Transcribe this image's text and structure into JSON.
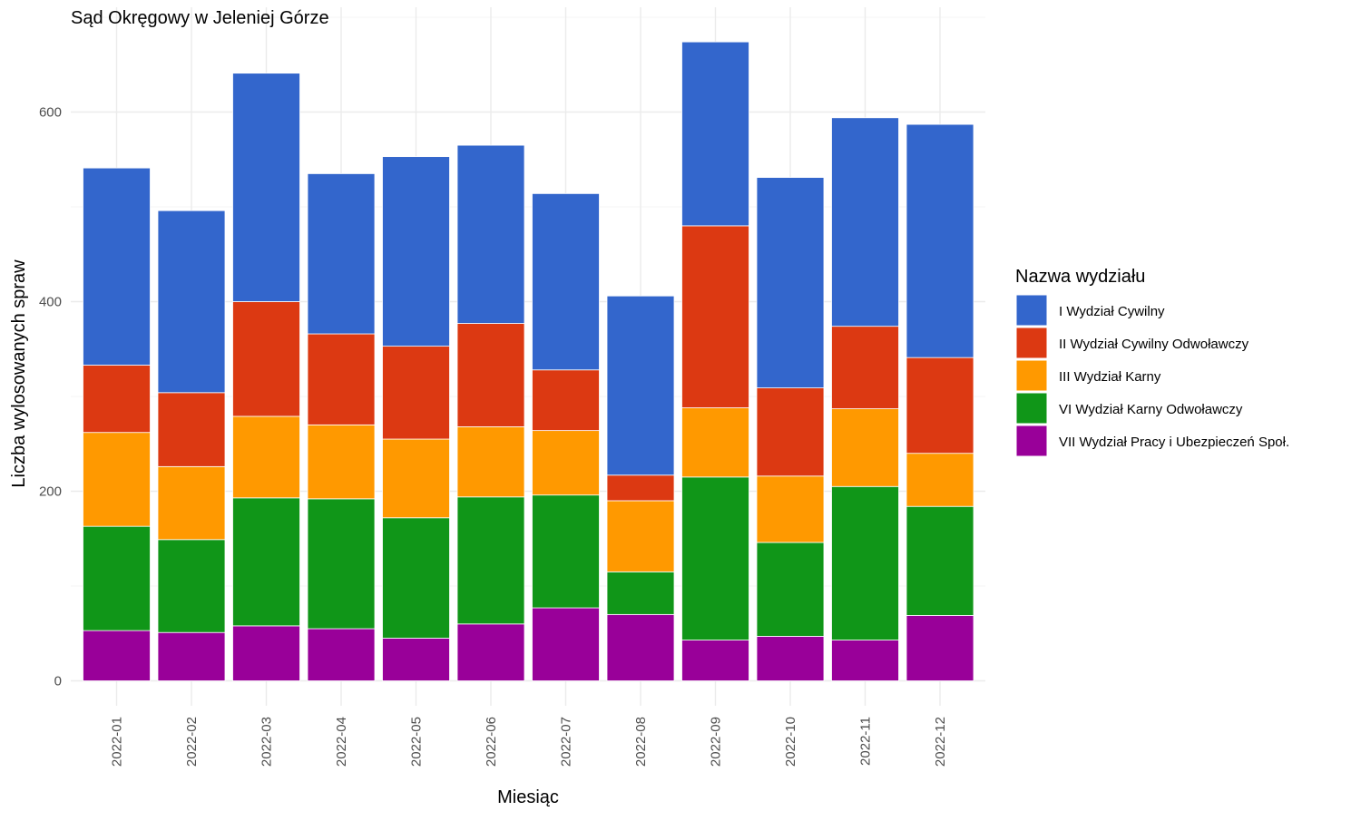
{
  "chart_data": {
    "type": "bar",
    "stacked": true,
    "title": "Sąd Okręgowy w Jeleniej Górze",
    "xlabel": "Miesiąc",
    "ylabel": "Liczba wylosowanych spraw",
    "ylim": [
      -25,
      700
    ],
    "yticks": [
      0,
      200,
      400,
      600
    ],
    "grid": true,
    "legend": {
      "title": "Nazwa wydziału",
      "position": "right"
    },
    "categories": [
      "2022-01",
      "2022-02",
      "2022-03",
      "2022-04",
      "2022-05",
      "2022-06",
      "2022-07",
      "2022-08",
      "2022-09",
      "2022-10",
      "2022-11",
      "2022-12"
    ],
    "series": [
      {
        "name": "VII Wydział Pracy i Ubezpieczeń Społ.",
        "color": "#990099",
        "values": [
          53,
          51,
          58,
          55,
          45,
          60,
          77,
          70,
          43,
          47,
          43,
          69
        ]
      },
      {
        "name": "VI Wydział Karny Odwoławczy",
        "color": "#109618",
        "values": [
          110,
          98,
          135,
          137,
          127,
          134,
          119,
          45,
          172,
          99,
          162,
          115
        ]
      },
      {
        "name": "III Wydział Karny",
        "color": "#ff9900",
        "values": [
          99,
          77,
          86,
          78,
          83,
          74,
          68,
          75,
          73,
          70,
          82,
          56
        ]
      },
      {
        "name": "II Wydział Cywilny Odwoławczy",
        "color": "#dc3912",
        "values": [
          71,
          78,
          121,
          96,
          98,
          109,
          64,
          27,
          192,
          93,
          87,
          101
        ]
      },
      {
        "name": "I Wydział Cywilny",
        "color": "#3366cc",
        "values": [
          208,
          192,
          241,
          169,
          200,
          188,
          186,
          189,
          194,
          222,
          220,
          246
        ]
      }
    ]
  }
}
